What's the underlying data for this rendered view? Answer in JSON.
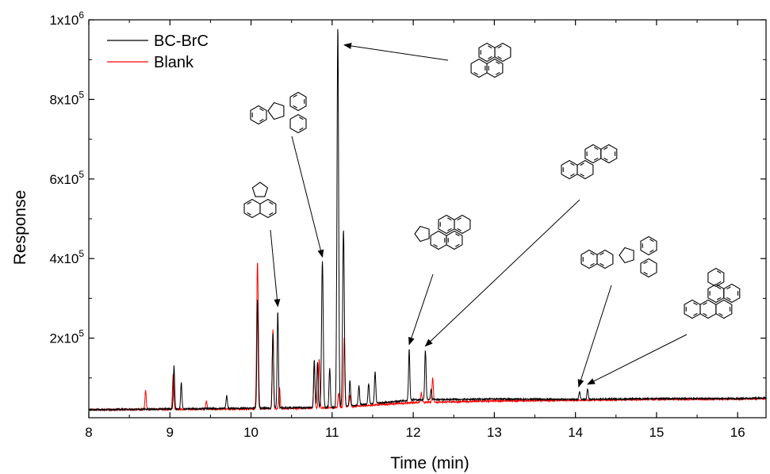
{
  "chart_data": {
    "type": "line",
    "title": "",
    "xlabel": "Time (min)",
    "ylabel": "Response",
    "xlim": [
      8,
      16.35
    ],
    "ylim": [
      0,
      1000000
    ],
    "x_ticks": [
      8,
      9,
      10,
      11,
      12,
      13,
      14,
      15,
      16
    ],
    "x_tick_labels": [
      "8",
      "9",
      "10",
      "11",
      "12",
      "13",
      "14",
      "15",
      "16"
    ],
    "y_ticks": [
      200000,
      400000,
      600000,
      800000,
      1000000
    ],
    "y_tick_labels": [
      {
        "mant": "2x10",
        "exp": "5"
      },
      {
        "mant": "4x10",
        "exp": "5"
      },
      {
        "mant": "6x10",
        "exp": "5"
      },
      {
        "mant": "8x10",
        "exp": "5"
      },
      {
        "mant": "1x10",
        "exp": "6"
      }
    ],
    "legend_position": "top-left",
    "grid": false,
    "series": [
      {
        "name": "BC-BrC",
        "color": "#000000",
        "baseline": [
          [
            8,
            20000
          ],
          [
            10,
            24000
          ],
          [
            11,
            26000
          ],
          [
            12,
            45000
          ],
          [
            13,
            47000
          ],
          [
            14,
            46000
          ],
          [
            15,
            48000
          ],
          [
            16,
            48000
          ],
          [
            16.35,
            50000
          ]
        ],
        "peaks": [
          [
            9.05,
            130000
          ],
          [
            9.14,
            88000
          ],
          [
            9.7,
            55000
          ],
          [
            10.08,
            300000
          ],
          [
            10.27,
            215000
          ],
          [
            10.33,
            268000
          ],
          [
            10.78,
            145000
          ],
          [
            10.82,
            140000
          ],
          [
            10.88,
            392000
          ],
          [
            10.97,
            125000
          ],
          [
            11.07,
            982000
          ],
          [
            11.14,
            472000
          ],
          [
            11.22,
            95000
          ],
          [
            11.33,
            80000
          ],
          [
            11.45,
            85000
          ],
          [
            11.53,
            115000
          ],
          [
            11.95,
            172000
          ],
          [
            12.15,
            170000
          ],
          [
            12.22,
            70000
          ],
          [
            14.05,
            66000
          ],
          [
            14.15,
            72000
          ]
        ]
      },
      {
        "name": "Blank",
        "color": "#ff0000",
        "baseline": [
          [
            8,
            20000
          ],
          [
            10,
            22000
          ],
          [
            11,
            25000
          ],
          [
            12,
            38000
          ],
          [
            13,
            42000
          ],
          [
            14,
            44000
          ],
          [
            15,
            46000
          ],
          [
            16,
            47000
          ],
          [
            16.35,
            48000
          ]
        ],
        "peaks": [
          [
            8.7,
            68000
          ],
          [
            9.04,
            110000
          ],
          [
            9.45,
            42000
          ],
          [
            10.08,
            393000
          ],
          [
            10.27,
            222000
          ],
          [
            10.35,
            78000
          ],
          [
            10.78,
            142000
          ],
          [
            10.84,
            148000
          ],
          [
            11.08,
            63000
          ],
          [
            11.15,
            200000
          ],
          [
            11.22,
            55000
          ],
          [
            12.1,
            62000
          ],
          [
            12.24,
            100000
          ]
        ]
      }
    ],
    "annotations": [
      {
        "compound": "acenaphthylene",
        "target": [
          10.33,
          268000
        ]
      },
      {
        "compound": "fluoranthene",
        "target": [
          10.88,
          392000
        ]
      },
      {
        "compound": "pyrene",
        "target": [
          11.09,
          925000
        ]
      },
      {
        "compound": "cyclopenta[cd]pyrene",
        "target": [
          11.95,
          172000
        ]
      },
      {
        "compound": "chrysene",
        "target": [
          12.15,
          168000
        ]
      },
      {
        "compound": "benzo[k]fluoranthene",
        "target": [
          14.04,
          66000
        ]
      },
      {
        "compound": "benzo[a]pyrene",
        "target": [
          14.15,
          72000
        ]
      }
    ]
  }
}
